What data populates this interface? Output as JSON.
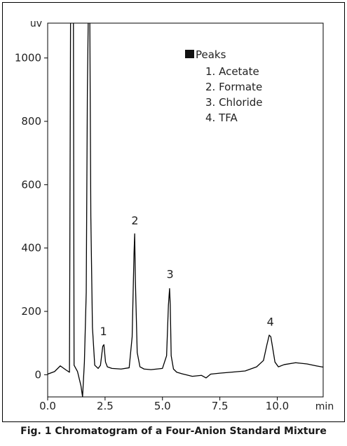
{
  "chart_data": {
    "type": "line",
    "caption": "Fig. 1 Chromatogram of a Four-Anion Standard Mixture",
    "xlabel": "min",
    "ylabel": "uv",
    "xlim": [
      0,
      12.0
    ],
    "ylim": [
      -70,
      1110
    ],
    "xticks": [
      0,
      2.5,
      5,
      7.5,
      10
    ],
    "xtick_labels": [
      "0.0",
      "2.5",
      "5.0",
      "7.5",
      "10.0"
    ],
    "yticks": [
      0,
      200,
      400,
      600,
      800,
      1000
    ],
    "ytick_labels": [
      "0",
      "200",
      "400",
      "600",
      "800",
      "1000"
    ],
    "grid": false,
    "legend_placement": "top-center",
    "legend": {
      "title": "Peaks",
      "items": [
        "1. Acetate",
        "2. Formate",
        "3. Chloride",
        "4. TFA"
      ]
    },
    "peak_labels": [
      {
        "text": "1",
        "x": 2.43,
        "y": 125
      },
      {
        "text": "2",
        "x": 3.8,
        "y": 475
      },
      {
        "text": "3",
        "x": 5.33,
        "y": 305
      },
      {
        "text": "4",
        "x": 9.7,
        "y": 155
      }
    ],
    "series": [
      {
        "color": "#000000",
        "x": [
          0,
          0.3,
          0.55,
          0.8,
          0.95,
          1.0,
          1.07,
          1.08,
          1.09,
          1.12,
          1.15,
          1.3,
          1.45,
          1.52,
          1.6,
          1.68,
          1.73,
          1.78,
          1.83,
          1.88,
          1.95,
          2.05,
          2.2,
          2.3,
          2.4,
          2.45,
          2.52,
          2.6,
          2.8,
          3.2,
          3.55,
          3.68,
          3.76,
          3.79,
          3.82,
          3.9,
          4.02,
          4.2,
          4.5,
          5.0,
          5.18,
          5.26,
          5.31,
          5.34,
          5.38,
          5.48,
          5.62,
          5.85,
          6.3,
          6.7,
          6.9,
          7.1,
          7.5,
          8.0,
          8.6,
          9.1,
          9.4,
          9.55,
          9.65,
          9.72,
          9.8,
          9.9,
          10.05,
          10.3,
          10.8,
          11.3,
          11.7,
          12.0
        ],
        "y": [
          2,
          10,
          28,
          15,
          8,
          1200,
          1200,
          1200,
          1200,
          1200,
          30,
          10,
          -35,
          -70,
          40,
          260,
          900,
          1200,
          1200,
          500,
          150,
          30,
          20,
          30,
          90,
          95,
          40,
          25,
          20,
          18,
          22,
          120,
          380,
          445,
          300,
          70,
          25,
          18,
          16,
          20,
          60,
          220,
          272,
          220,
          60,
          18,
          8,
          3,
          -5,
          -2,
          -10,
          2,
          5,
          8,
          12,
          25,
          45,
          95,
          125,
          120,
          85,
          40,
          25,
          32,
          38,
          34,
          28,
          24
        ]
      }
    ]
  }
}
